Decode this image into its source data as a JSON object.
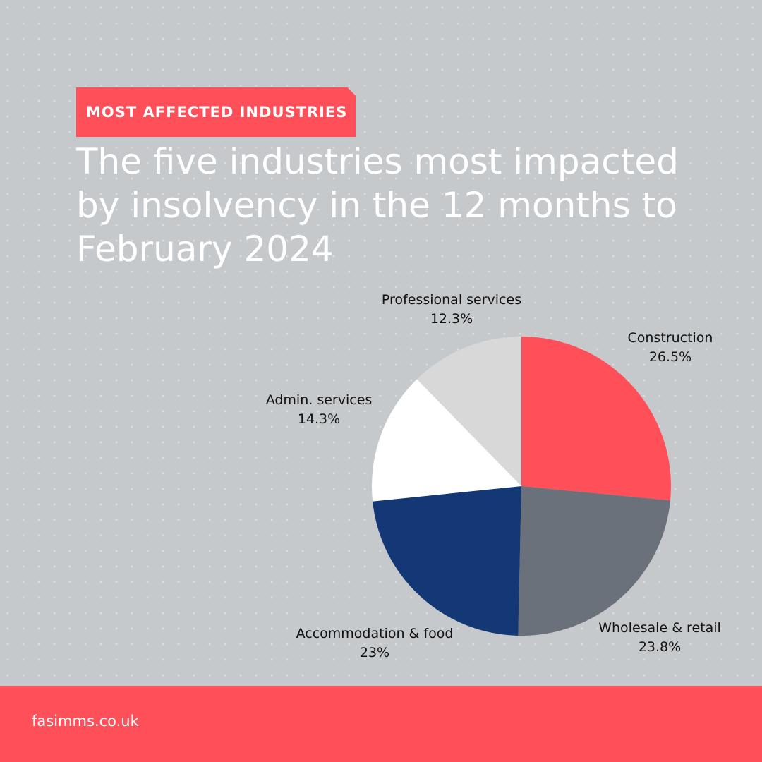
{
  "tag": "MOST AFFECTED INDUSTRIES",
  "headline": [
    "The five industries most impacted",
    "by insolvency in the 12 months to",
    "February 2024"
  ],
  "footer": {
    "link": "fasimms.co.uk"
  },
  "chart_data": {
    "type": "pie",
    "title": "",
    "categories": [
      "Construction",
      "Wholesale & retail",
      "Accommodation & food",
      "Admin. services",
      "Professional services"
    ],
    "values": [
      26.5,
      23.8,
      23,
      14.3,
      12.3
    ],
    "value_labels": [
      "26.5%",
      "23.8%",
      "23%",
      "14.3%",
      "12.3%"
    ],
    "colors": [
      "#ff505a",
      "#6a717b",
      "#143876",
      "#ffffff",
      "#d8d8d8"
    ],
    "start_angle": "12 o'clock",
    "direction": "clockwise"
  }
}
